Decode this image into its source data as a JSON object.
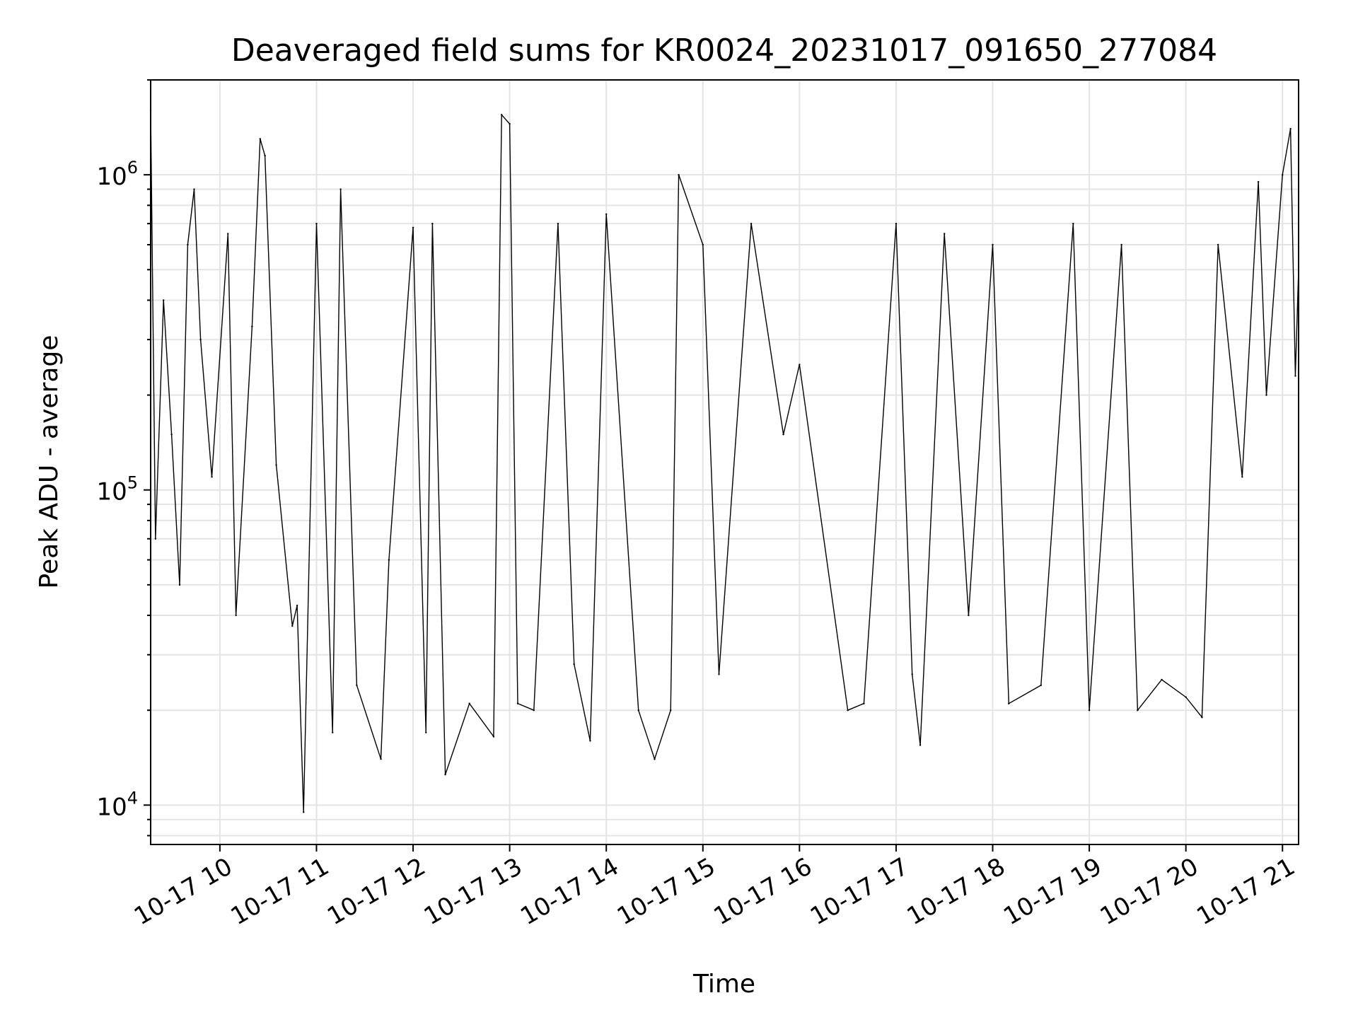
{
  "chart_data": {
    "type": "line",
    "title": "Deaveraged field sums for KR0024_20231017_091650_277084",
    "xlabel": "Time",
    "ylabel": "Peak ADU - average",
    "y_scale": "log",
    "ylim": [
      7500,
      2000000
    ],
    "xlim": [
      "2023-10-17 09:17",
      "2023-10-17 21:10"
    ],
    "grid": true,
    "line_color": "#000000",
    "x_ticks": [
      {
        "value": "2023-10-17 10:00",
        "label": "10-17 10"
      },
      {
        "value": "2023-10-17 11:00",
        "label": "10-17 11"
      },
      {
        "value": "2023-10-17 12:00",
        "label": "10-17 12"
      },
      {
        "value": "2023-10-17 13:00",
        "label": "10-17 13"
      },
      {
        "value": "2023-10-17 14:00",
        "label": "10-17 14"
      },
      {
        "value": "2023-10-17 15:00",
        "label": "10-17 15"
      },
      {
        "value": "2023-10-17 16:00",
        "label": "10-17 16"
      },
      {
        "value": "2023-10-17 17:00",
        "label": "10-17 17"
      },
      {
        "value": "2023-10-17 18:00",
        "label": "10-17 18"
      },
      {
        "value": "2023-10-17 19:00",
        "label": "10-17 19"
      },
      {
        "value": "2023-10-17 20:00",
        "label": "10-17 20"
      },
      {
        "value": "2023-10-17 21:00",
        "label": "10-17 21"
      }
    ],
    "y_ticks": [
      {
        "value": 10000,
        "base": "10",
        "exp": "4"
      },
      {
        "value": 100000,
        "base": "10",
        "exp": "5"
      },
      {
        "value": 1000000,
        "base": "10",
        "exp": "6"
      }
    ],
    "series": [
      {
        "points": [
          [
            "2023-10-17 09:17",
            1600000
          ],
          [
            "2023-10-17 09:20",
            70000
          ],
          [
            "2023-10-17 09:25",
            400000
          ],
          [
            "2023-10-17 09:30",
            150000
          ],
          [
            "2023-10-17 09:35",
            50000
          ],
          [
            "2023-10-17 09:40",
            600000
          ],
          [
            "2023-10-17 09:44",
            900000
          ],
          [
            "2023-10-17 09:48",
            300000
          ],
          [
            "2023-10-17 09:55",
            110000
          ],
          [
            "2023-10-17 10:05",
            650000
          ],
          [
            "2023-10-17 10:10",
            40000
          ],
          [
            "2023-10-17 10:20",
            330000
          ],
          [
            "2023-10-17 10:25",
            1300000
          ],
          [
            "2023-10-17 10:28",
            1150000
          ],
          [
            "2023-10-17 10:35",
            120000
          ],
          [
            "2023-10-17 10:45",
            37000
          ],
          [
            "2023-10-17 10:48",
            43000
          ],
          [
            "2023-10-17 10:52",
            9500
          ],
          [
            "2023-10-17 11:00",
            700000
          ],
          [
            "2023-10-17 11:10",
            17000
          ],
          [
            "2023-10-17 11:15",
            900000
          ],
          [
            "2023-10-17 11:25",
            24000
          ],
          [
            "2023-10-17 11:40",
            14000
          ],
          [
            "2023-10-17 11:45",
            60000
          ],
          [
            "2023-10-17 12:00",
            680000
          ],
          [
            "2023-10-17 12:08",
            17000
          ],
          [
            "2023-10-17 12:12",
            700000
          ],
          [
            "2023-10-17 12:20",
            12500
          ],
          [
            "2023-10-17 12:35",
            21000
          ],
          [
            "2023-10-17 12:50",
            16500
          ],
          [
            "2023-10-17 12:55",
            1550000
          ],
          [
            "2023-10-17 13:00",
            1450000
          ],
          [
            "2023-10-17 13:05",
            21000
          ],
          [
            "2023-10-17 13:15",
            20000
          ],
          [
            "2023-10-17 13:30",
            700000
          ],
          [
            "2023-10-17 13:40",
            28000
          ],
          [
            "2023-10-17 13:50",
            16000
          ],
          [
            "2023-10-17 14:00",
            750000
          ],
          [
            "2023-10-17 14:20",
            20000
          ],
          [
            "2023-10-17 14:30",
            14000
          ],
          [
            "2023-10-17 14:40",
            20000
          ],
          [
            "2023-10-17 14:45",
            1000000
          ],
          [
            "2023-10-17 15:00",
            600000
          ],
          [
            "2023-10-17 15:10",
            26000
          ],
          [
            "2023-10-17 15:30",
            700000
          ],
          [
            "2023-10-17 15:50",
            150000
          ],
          [
            "2023-10-17 16:00",
            250000
          ],
          [
            "2023-10-17 16:30",
            20000
          ],
          [
            "2023-10-17 16:40",
            21000
          ],
          [
            "2023-10-17 17:00",
            700000
          ],
          [
            "2023-10-17 17:10",
            26000
          ],
          [
            "2023-10-17 17:15",
            15500
          ],
          [
            "2023-10-17 17:30",
            650000
          ],
          [
            "2023-10-17 17:45",
            40000
          ],
          [
            "2023-10-17 18:00",
            600000
          ],
          [
            "2023-10-17 18:10",
            21000
          ],
          [
            "2023-10-17 18:30",
            24000
          ],
          [
            "2023-10-17 18:50",
            700000
          ],
          [
            "2023-10-17 19:00",
            20000
          ],
          [
            "2023-10-17 19:20",
            600000
          ],
          [
            "2023-10-17 19:30",
            20000
          ],
          [
            "2023-10-17 19:45",
            25000
          ],
          [
            "2023-10-17 20:00",
            22000
          ],
          [
            "2023-10-17 20:10",
            19000
          ],
          [
            "2023-10-17 20:20",
            600000
          ],
          [
            "2023-10-17 20:35",
            110000
          ],
          [
            "2023-10-17 20:45",
            950000
          ],
          [
            "2023-10-17 20:50",
            200000
          ],
          [
            "2023-10-17 21:00",
            1000000
          ],
          [
            "2023-10-17 21:05",
            1400000
          ],
          [
            "2023-10-17 21:08",
            230000
          ],
          [
            "2023-10-17 21:10",
            500000
          ]
        ]
      }
    ]
  }
}
